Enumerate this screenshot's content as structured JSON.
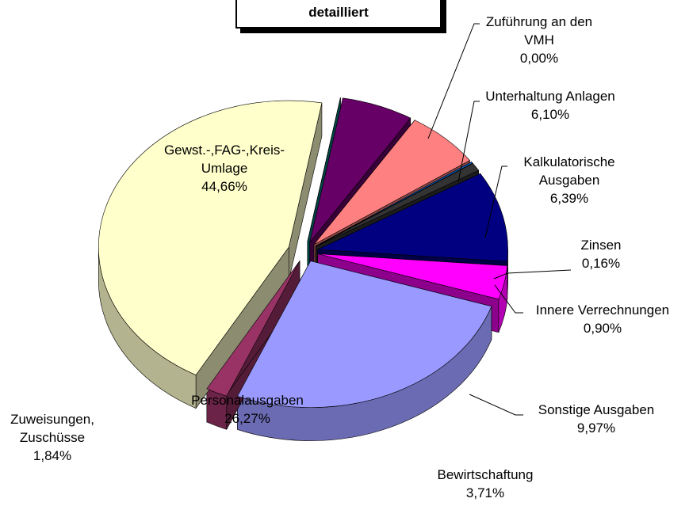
{
  "chart_data": {
    "type": "pie",
    "title": "detailliert",
    "categories": [
      "Zuführung an den VMH",
      "Unterhaltung Anlagen",
      "Kalkulatorische Ausgaben",
      "Zinsen",
      "Innere Verrechnungen",
      "Sonstige Ausgaben",
      "Bewirtschaftung",
      "Personalausgaben",
      "Zuweisungen, Zuschüsse",
      "Gewst.-,FAG-,Kreis-Umlage"
    ],
    "values": [
      0.0,
      6.1,
      6.39,
      0.16,
      0.9,
      9.97,
      3.71,
      26.27,
      1.84,
      44.66
    ],
    "value_labels": [
      "0,00%",
      "6,10%",
      "6,39%",
      "0,16%",
      "0,90%",
      "9,97%",
      "3,71%",
      "26,27%",
      "1,84%",
      "44,66%"
    ],
    "colors": [
      "#008080",
      "#660066",
      "#ff8080",
      "#0066cc",
      "#333333",
      "#000080",
      "#ff00ff",
      "#9999ff",
      "#993366",
      "#ffffcc"
    ]
  }
}
